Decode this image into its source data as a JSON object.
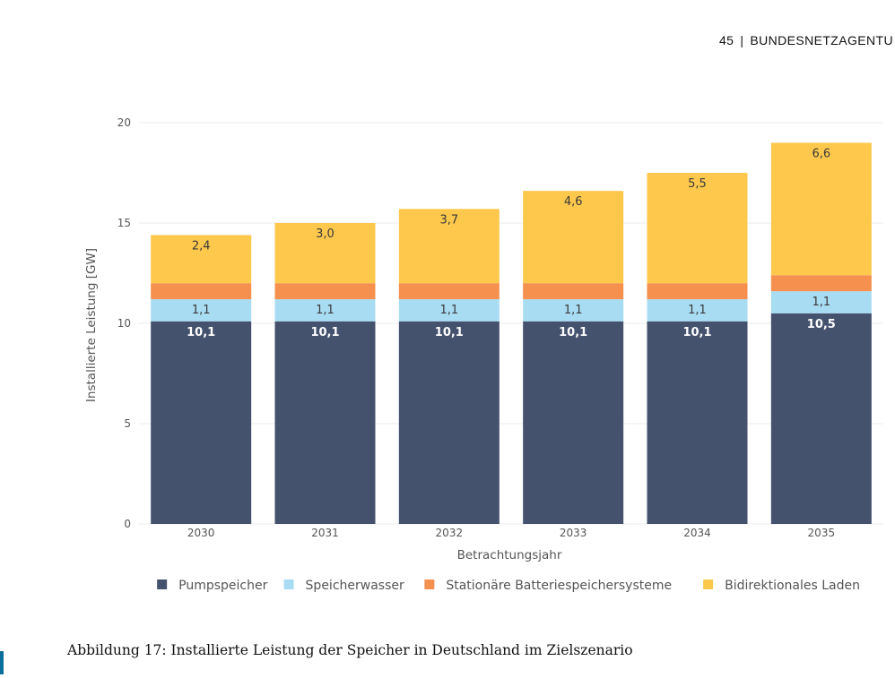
{
  "header": {
    "page_number": "45",
    "separator": "|",
    "publisher": "BUNDESNETZAGENTU"
  },
  "caption": "Abbildung 17: Installierte Leistung der Speicher in Deutschland im Zielszenario",
  "chart_data": {
    "type": "bar",
    "stacked": true,
    "title": "",
    "xlabel": "Betrachtungsjahr",
    "ylabel": "Installierte Leistung [GW]",
    "ylim": [
      0,
      20
    ],
    "yticks": [
      0,
      5,
      10,
      15,
      20
    ],
    "grid": true,
    "legend_position": "bottom",
    "categories": [
      "2030",
      "2031",
      "2032",
      "2033",
      "2034",
      "2035"
    ],
    "series": [
      {
        "name": "Pumpspeicher",
        "color": "#45526e",
        "values": [
          10.1,
          10.1,
          10.1,
          10.1,
          10.1,
          10.5
        ],
        "labels": [
          "10,1",
          "10,1",
          "10,1",
          "10,1",
          "10,1",
          "10,5"
        ]
      },
      {
        "name": "Speicherwasser",
        "color": "#a8dcf3",
        "values": [
          1.1,
          1.1,
          1.1,
          1.1,
          1.1,
          1.1
        ],
        "labels": [
          "1,1",
          "1,1",
          "1,1",
          "1,1",
          "1,1",
          "1,1"
        ]
      },
      {
        "name": "Stationäre Batteriespeichersysteme",
        "color": "#f5904e",
        "values": [
          0.8,
          0.8,
          0.8,
          0.8,
          0.8,
          0.8
        ],
        "labels": [
          "",
          "",
          "",
          "",
          "",
          ""
        ]
      },
      {
        "name": "Bidirektionales Laden",
        "color": "#fdc84c",
        "values": [
          2.4,
          3.0,
          3.7,
          4.6,
          5.5,
          6.6
        ],
        "labels": [
          "2,4",
          "3,0",
          "3,7",
          "4,6",
          "5,5",
          "6,6"
        ]
      }
    ]
  }
}
